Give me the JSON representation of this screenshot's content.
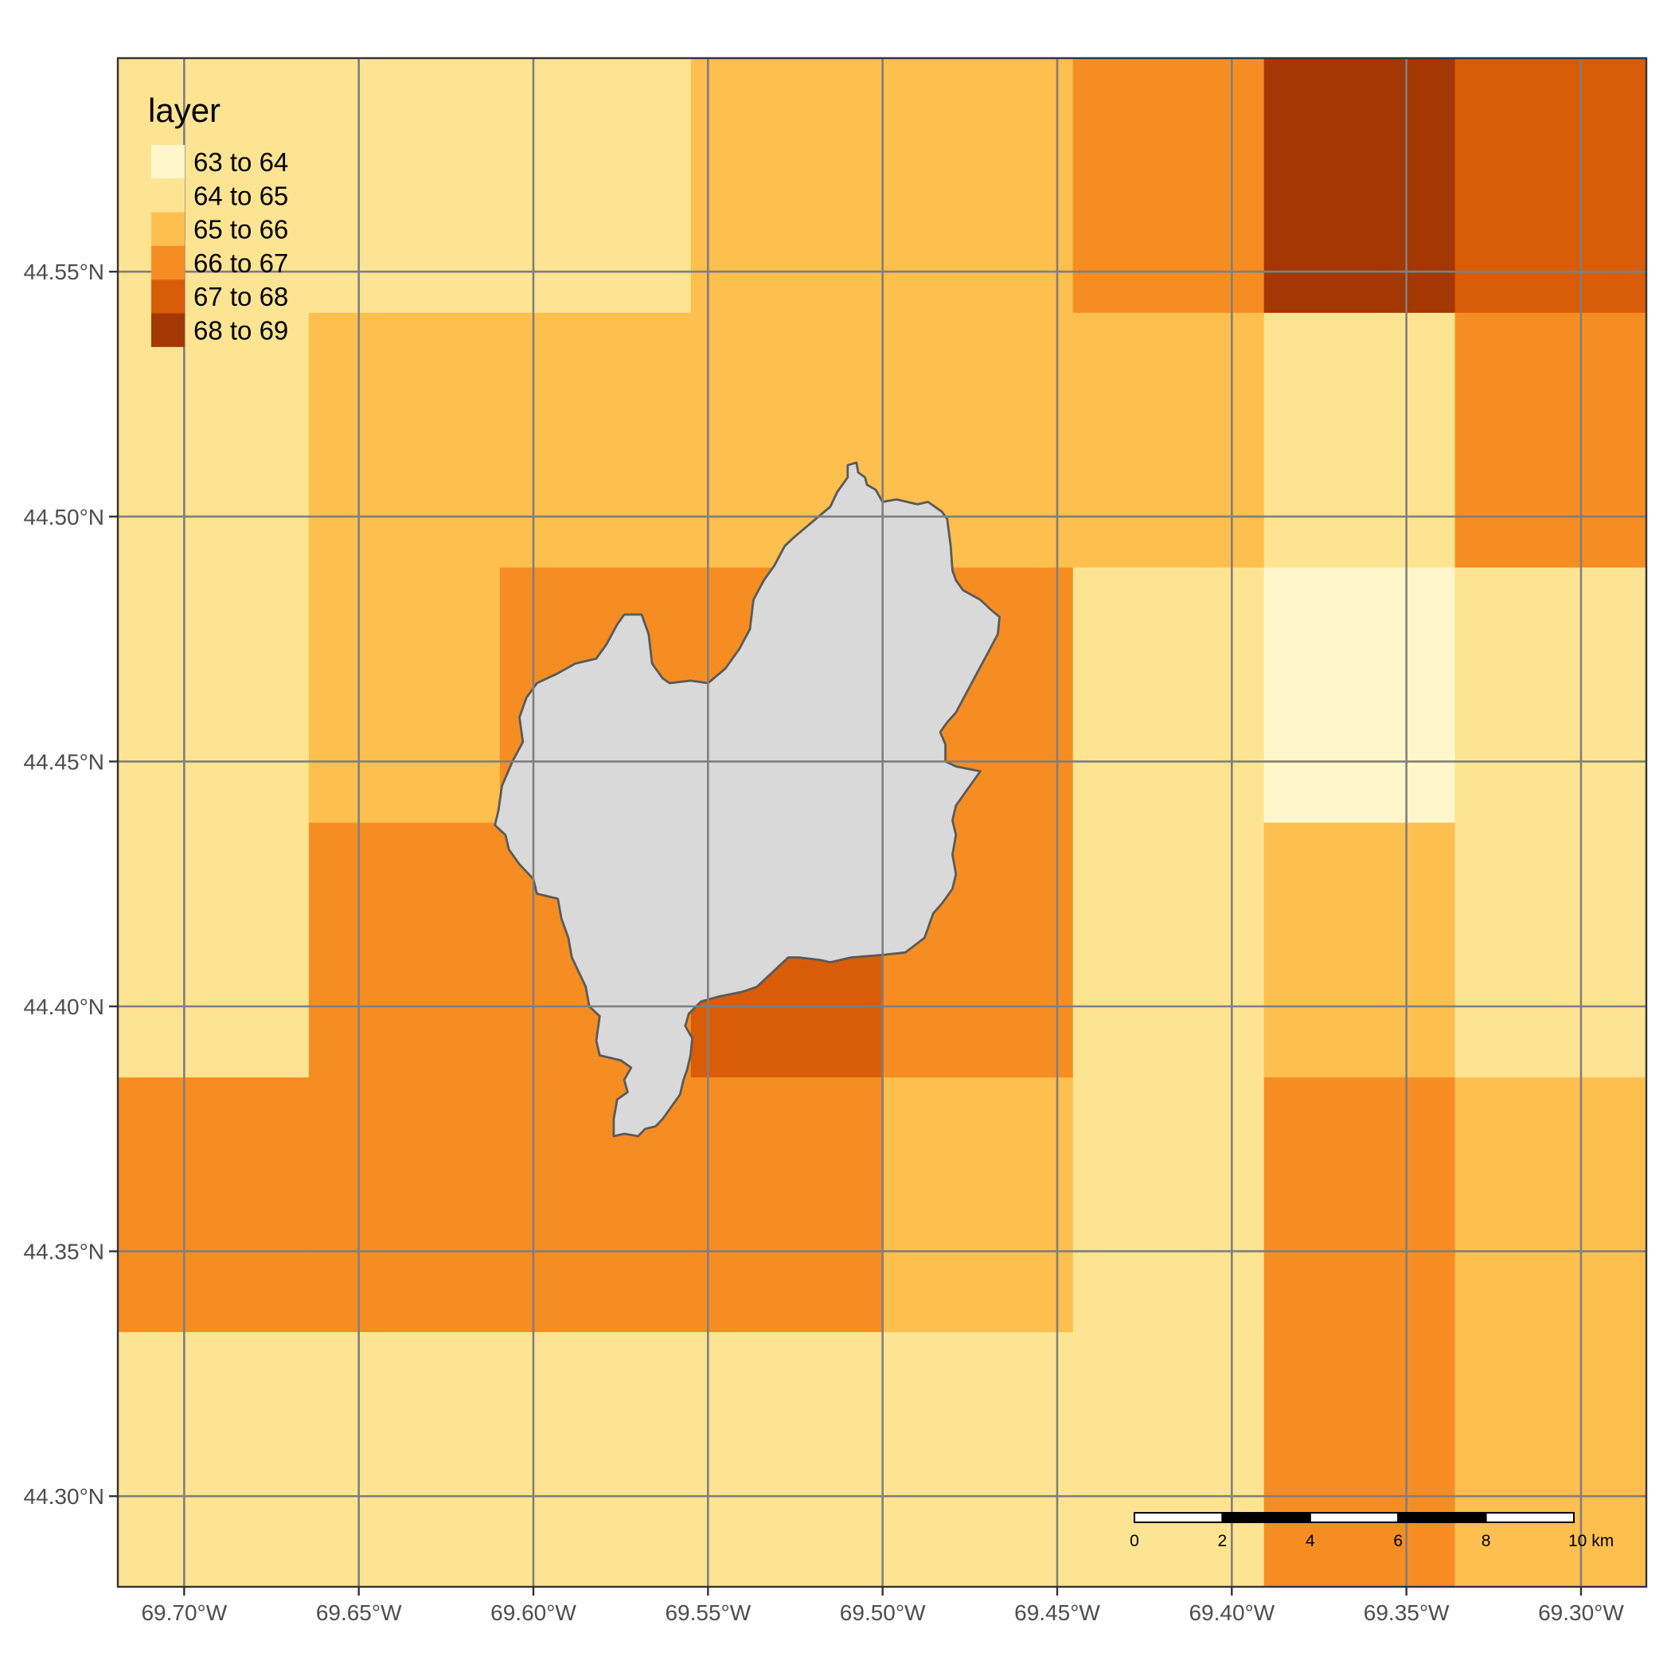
{
  "map": {
    "legend": {
      "title": "layer",
      "entries": [
        {
          "label": "63 to 64",
          "color": "#fff7cb"
        },
        {
          "label": "64 to 65",
          "color": "#fde493"
        },
        {
          "label": "65 to 66",
          "color": "#fdbf4e"
        },
        {
          "label": "66 to 67",
          "color": "#f68d23"
        },
        {
          "label": "67 to 68",
          "color": "#d95d09"
        },
        {
          "label": "68 to 69",
          "color": "#a33804"
        }
      ]
    },
    "x_axis": {
      "ticks": [
        {
          "value": -69.7,
          "label": "69.70°W"
        },
        {
          "value": -69.65,
          "label": "69.65°W"
        },
        {
          "value": -69.6,
          "label": "69.60°W"
        },
        {
          "value": -69.55,
          "label": "69.55°W"
        },
        {
          "value": -69.5,
          "label": "69.50°W"
        },
        {
          "value": -69.45,
          "label": "69.45°W"
        },
        {
          "value": -69.4,
          "label": "69.40°W"
        },
        {
          "value": -69.35,
          "label": "69.35°W"
        },
        {
          "value": -69.3,
          "label": "69.30°W"
        }
      ],
      "range": [
        -69.719,
        -69.2813
      ]
    },
    "y_axis": {
      "ticks": [
        {
          "value": 44.3,
          "label": "44.30°N"
        },
        {
          "value": 44.35,
          "label": "44.35°N"
        },
        {
          "value": 44.4,
          "label": "44.40°N"
        },
        {
          "value": 44.45,
          "label": "44.45°N"
        },
        {
          "value": 44.5,
          "label": "44.50°N"
        },
        {
          "value": 44.55,
          "label": "44.55°N"
        }
      ],
      "range": [
        44.2815,
        44.5936
      ]
    },
    "raster": {
      "lon_edges": [
        -69.719,
        -69.6643,
        -69.6096,
        -69.5549,
        -69.5002,
        -69.4455,
        -69.3908,
        -69.3361,
        -69.2813
      ],
      "lat_edges": [
        44.5936,
        44.5416,
        44.4896,
        44.4375,
        44.3855,
        44.3335,
        44.2815
      ],
      "class_grid": [
        [
          1,
          1,
          1,
          2,
          2,
          3,
          5,
          4
        ],
        [
          1,
          2,
          2,
          2,
          2,
          2,
          1,
          3
        ],
        [
          1,
          2,
          3,
          3,
          3,
          1,
          0,
          1
        ],
        [
          1,
          3,
          3,
          4,
          3,
          1,
          2,
          1
        ],
        [
          3,
          3,
          3,
          3,
          2,
          1,
          3,
          2
        ],
        [
          1,
          1,
          1,
          1,
          1,
          1,
          3,
          2
        ]
      ]
    },
    "polygon": {
      "fill": "#d9d9d9",
      "stroke": "#595959",
      "lonlat": [
        [
          -69.51,
          44.5105
        ],
        [
          -69.5075,
          44.511
        ],
        [
          -69.507,
          44.509
        ],
        [
          -69.505,
          44.508
        ],
        [
          -69.5045,
          44.5065
        ],
        [
          -69.502,
          44.5055
        ],
        [
          -69.5,
          44.503
        ],
        [
          -69.496,
          44.5035
        ],
        [
          -69.49,
          44.5025
        ],
        [
          -69.487,
          44.503
        ],
        [
          -69.483,
          44.501
        ],
        [
          -69.4815,
          44.4995
        ],
        [
          -69.4805,
          44.494
        ],
        [
          -69.48,
          44.489
        ],
        [
          -69.479,
          44.487
        ],
        [
          -69.477,
          44.485
        ],
        [
          -69.472,
          44.483
        ],
        [
          -69.469,
          44.481
        ],
        [
          -69.4665,
          44.4795
        ],
        [
          -69.467,
          44.476
        ],
        [
          -69.47,
          44.472
        ],
        [
          -69.473,
          44.468
        ],
        [
          -69.476,
          44.464
        ],
        [
          -69.479,
          44.46
        ],
        [
          -69.4815,
          44.458
        ],
        [
          -69.4835,
          44.456
        ],
        [
          -69.482,
          44.4535
        ],
        [
          -69.482,
          44.45
        ],
        [
          -69.479,
          44.449
        ],
        [
          -69.472,
          44.448
        ],
        [
          -69.476,
          44.444
        ],
        [
          -69.479,
          44.441
        ],
        [
          -69.48,
          44.438
        ],
        [
          -69.479,
          44.435
        ],
        [
          -69.48,
          44.431
        ],
        [
          -69.479,
          44.427
        ],
        [
          -69.48,
          44.424
        ],
        [
          -69.483,
          44.421
        ],
        [
          -69.4855,
          44.419
        ],
        [
          -69.487,
          44.416
        ],
        [
          -69.488,
          44.414
        ],
        [
          -69.4935,
          44.411
        ],
        [
          -69.5,
          44.4105
        ],
        [
          -69.509,
          44.41
        ],
        [
          -69.515,
          44.409
        ],
        [
          -69.518,
          44.4095
        ],
        [
          -69.524,
          44.41
        ],
        [
          -69.527,
          44.41
        ],
        [
          -69.53,
          44.408
        ],
        [
          -69.533,
          44.406
        ],
        [
          -69.536,
          44.404
        ],
        [
          -69.54,
          44.403
        ],
        [
          -69.547,
          44.402
        ],
        [
          -69.552,
          44.401
        ],
        [
          -69.5555,
          44.3985
        ],
        [
          -69.5565,
          44.396
        ],
        [
          -69.5545,
          44.3935
        ],
        [
          -69.555,
          44.39
        ],
        [
          -69.556,
          44.387
        ],
        [
          -69.557,
          44.385
        ],
        [
          -69.558,
          44.382
        ],
        [
          -69.561,
          44.379
        ],
        [
          -69.563,
          44.377
        ],
        [
          -69.565,
          44.3755
        ],
        [
          -69.568,
          44.375
        ],
        [
          -69.57,
          44.3735
        ],
        [
          -69.574,
          44.374
        ],
        [
          -69.577,
          44.3735
        ],
        [
          -69.577,
          44.377
        ],
        [
          -69.576,
          44.381
        ],
        [
          -69.573,
          44.3825
        ],
        [
          -69.574,
          44.385
        ],
        [
          -69.572,
          44.3875
        ],
        [
          -69.575,
          44.389
        ],
        [
          -69.581,
          44.39
        ],
        [
          -69.582,
          44.393
        ],
        [
          -69.581,
          44.398
        ],
        [
          -69.584,
          44.4
        ],
        [
          -69.585,
          44.404
        ],
        [
          -69.587,
          44.407
        ],
        [
          -69.589,
          44.41
        ],
        [
          -69.59,
          44.414
        ],
        [
          -69.592,
          44.418
        ],
        [
          -69.593,
          44.422
        ],
        [
          -69.599,
          44.423
        ],
        [
          -69.6,
          44.426
        ],
        [
          -69.604,
          44.429
        ],
        [
          -69.607,
          44.432
        ],
        [
          -69.608,
          44.435
        ],
        [
          -69.611,
          44.437
        ],
        [
          -69.61,
          44.44
        ],
        [
          -69.609,
          44.445
        ],
        [
          -69.606,
          44.45
        ],
        [
          -69.603,
          44.454
        ],
        [
          -69.604,
          44.459
        ],
        [
          -69.602,
          44.463
        ],
        [
          -69.599,
          44.466
        ],
        [
          -69.593,
          44.468
        ],
        [
          -69.588,
          44.47
        ],
        [
          -69.582,
          44.471
        ],
        [
          -69.579,
          44.474
        ],
        [
          -69.576,
          44.478
        ],
        [
          -69.574,
          44.48
        ],
        [
          -69.569,
          44.48
        ],
        [
          -69.567,
          44.476
        ],
        [
          -69.566,
          44.47
        ],
        [
          -69.563,
          44.467
        ],
        [
          -69.561,
          44.466
        ],
        [
          -69.555,
          44.4665
        ],
        [
          -69.55,
          44.466
        ],
        [
          -69.545,
          44.469
        ],
        [
          -69.541,
          44.473
        ],
        [
          -69.538,
          44.477
        ],
        [
          -69.537,
          44.483
        ],
        [
          -69.534,
          44.487
        ],
        [
          -69.531,
          44.49
        ],
        [
          -69.528,
          44.494
        ],
        [
          -69.525,
          44.496
        ],
        [
          -69.52,
          44.499
        ],
        [
          -69.515,
          44.502
        ],
        [
          -69.513,
          44.505
        ],
        [
          -69.51,
          44.508
        ],
        [
          -69.51,
          44.5105
        ]
      ]
    },
    "scale_bar": {
      "ticks": [
        "0",
        "2",
        "4",
        "6",
        "8",
        "10 km"
      ],
      "segments": 5
    }
  }
}
